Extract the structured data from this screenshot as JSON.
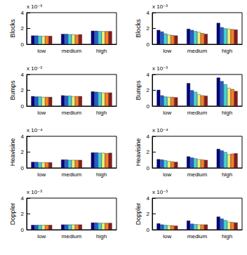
{
  "chart_data": [
    {
      "type": "bar",
      "y_label": "Blocks",
      "annotation": "x 10⁻³",
      "categories": [
        "low",
        "medium",
        "high"
      ],
      "ylim": [
        0,
        4
      ],
      "yticks": [
        0,
        2,
        4
      ],
      "grid": false,
      "series": [
        {
          "color": "#000080",
          "values": [
            1.1,
            1.3,
            1.7
          ]
        },
        {
          "color": "#1f5fd6",
          "values": [
            1.1,
            1.3,
            1.7
          ]
        },
        {
          "color": "#3fd7e0",
          "values": [
            1.05,
            1.25,
            1.65
          ]
        },
        {
          "color": "#eef07a",
          "values": [
            1.05,
            1.25,
            1.65
          ]
        },
        {
          "color": "#ff7f1f",
          "values": [
            1.05,
            1.2,
            1.65
          ]
        },
        {
          "color": "#8b1a1a",
          "values": [
            1.05,
            1.25,
            1.65
          ]
        }
      ]
    },
    {
      "type": "bar",
      "y_label": "Blocks",
      "annotation": "x 10⁻³",
      "categories": [
        "low",
        "medium",
        "high"
      ],
      "ylim": [
        0,
        4
      ],
      "yticks": [
        0,
        2,
        4
      ],
      "grid": false,
      "series": [
        {
          "color": "#000080",
          "values": [
            1.8,
            1.95,
            2.7
          ]
        },
        {
          "color": "#1f5fd6",
          "values": [
            1.6,
            1.8,
            2.15
          ]
        },
        {
          "color": "#3fd7e0",
          "values": [
            1.35,
            1.65,
            2.0
          ]
        },
        {
          "color": "#eef07a",
          "values": [
            1.2,
            1.55,
            1.95
          ]
        },
        {
          "color": "#ff7f1f",
          "values": [
            1.15,
            1.4,
            1.9
          ]
        },
        {
          "color": "#8b1a1a",
          "values": [
            1.1,
            1.3,
            1.85
          ]
        }
      ]
    },
    {
      "type": "bar",
      "y_label": "Bumps",
      "annotation": "x 10⁻³",
      "categories": [
        "low",
        "medium",
        "high"
      ],
      "ylim": [
        0,
        4
      ],
      "yticks": [
        0,
        2,
        4
      ],
      "grid": false,
      "series": [
        {
          "color": "#000080",
          "values": [
            1.25,
            1.35,
            1.85
          ]
        },
        {
          "color": "#1f5fd6",
          "values": [
            1.2,
            1.3,
            1.8
          ]
        },
        {
          "color": "#3fd7e0",
          "values": [
            1.2,
            1.3,
            1.75
          ]
        },
        {
          "color": "#eef07a",
          "values": [
            1.15,
            1.25,
            1.7
          ]
        },
        {
          "color": "#ff7f1f",
          "values": [
            1.15,
            1.25,
            1.7
          ]
        },
        {
          "color": "#8b1a1a",
          "values": [
            1.15,
            1.25,
            1.7
          ]
        }
      ]
    },
    {
      "type": "bar",
      "y_label": "Bumps",
      "annotation": "x 10⁻³",
      "categories": [
        "low",
        "medium",
        "high"
      ],
      "ylim": [
        0,
        4
      ],
      "yticks": [
        0,
        2,
        4
      ],
      "grid": false,
      "series": [
        {
          "color": "#000080",
          "values": [
            2.05,
            2.9,
            3.6
          ]
        },
        {
          "color": "#1f5fd6",
          "values": [
            1.35,
            2.0,
            3.15
          ]
        },
        {
          "color": "#3fd7e0",
          "values": [
            1.2,
            1.8,
            2.75
          ]
        },
        {
          "color": "#eef07a",
          "values": [
            1.15,
            1.5,
            2.3
          ]
        },
        {
          "color": "#ff7f1f",
          "values": [
            1.15,
            1.35,
            2.15
          ]
        },
        {
          "color": "#8b1a1a",
          "values": [
            1.1,
            1.3,
            1.9
          ]
        }
      ]
    },
    {
      "type": "bar",
      "y_label": "Heavisine",
      "annotation": "x 10⁻⁴",
      "categories": [
        "low",
        "medium",
        "high"
      ],
      "ylim": [
        0,
        4
      ],
      "yticks": [
        0,
        2,
        4
      ],
      "grid": false,
      "series": [
        {
          "color": "#000080",
          "values": [
            0.75,
            1.05,
            1.95
          ]
        },
        {
          "color": "#1f5fd6",
          "values": [
            0.75,
            1.05,
            1.95
          ]
        },
        {
          "color": "#3fd7e0",
          "values": [
            0.7,
            1.0,
            1.9
          ]
        },
        {
          "color": "#eef07a",
          "values": [
            0.7,
            1.0,
            1.9
          ]
        },
        {
          "color": "#ff7f1f",
          "values": [
            0.7,
            1.0,
            1.85
          ]
        },
        {
          "color": "#8b1a1a",
          "values": [
            0.7,
            1.0,
            1.9
          ]
        }
      ]
    },
    {
      "type": "bar",
      "y_label": "Heavisine",
      "annotation": "x 10⁻⁴",
      "categories": [
        "low",
        "medium",
        "high"
      ],
      "ylim": [
        0,
        4
      ],
      "yticks": [
        0,
        2,
        4
      ],
      "grid": false,
      "series": [
        {
          "color": "#000080",
          "values": [
            1.1,
            1.45,
            2.4
          ]
        },
        {
          "color": "#1f5fd6",
          "values": [
            1.05,
            1.3,
            2.2
          ]
        },
        {
          "color": "#3fd7e0",
          "values": [
            0.95,
            1.2,
            2.0
          ]
        },
        {
          "color": "#eef07a",
          "values": [
            0.85,
            1.1,
            1.7
          ]
        },
        {
          "color": "#ff7f1f",
          "values": [
            0.8,
            1.05,
            1.8
          ]
        },
        {
          "color": "#8b1a1a",
          "values": [
            0.75,
            1.0,
            1.85
          ]
        }
      ]
    },
    {
      "type": "bar",
      "y_label": "Doppler",
      "annotation": "x 10⁻³",
      "categories": [
        "low",
        "medium",
        "high"
      ],
      "ylim": [
        0,
        4
      ],
      "yticks": [
        0,
        2,
        4
      ],
      "grid": false,
      "series": [
        {
          "color": "#000080",
          "values": [
            0.6,
            0.65,
            0.9
          ]
        },
        {
          "color": "#1f5fd6",
          "values": [
            0.6,
            0.65,
            0.9
          ]
        },
        {
          "color": "#3fd7e0",
          "values": [
            0.6,
            0.65,
            0.85
          ]
        },
        {
          "color": "#eef07a",
          "values": [
            0.6,
            0.65,
            0.85
          ]
        },
        {
          "color": "#ff7f1f",
          "values": [
            0.6,
            0.65,
            0.85
          ]
        },
        {
          "color": "#8b1a1a",
          "values": [
            0.6,
            0.65,
            0.85
          ]
        }
      ]
    },
    {
      "type": "bar",
      "y_label": "Doppler",
      "annotation": "x 10⁻³",
      "categories": [
        "low",
        "medium",
        "high"
      ],
      "ylim": [
        0,
        4
      ],
      "yticks": [
        0,
        2,
        4
      ],
      "grid": false,
      "series": [
        {
          "color": "#000080",
          "values": [
            0.8,
            1.15,
            1.65
          ]
        },
        {
          "color": "#1f5fd6",
          "values": [
            0.65,
            0.75,
            1.4
          ]
        },
        {
          "color": "#3fd7e0",
          "values": [
            0.6,
            0.7,
            1.2
          ]
        },
        {
          "color": "#eef07a",
          "values": [
            0.55,
            0.65,
            1.0
          ]
        },
        {
          "color": "#ff7f1f",
          "values": [
            0.55,
            0.65,
            0.95
          ]
        },
        {
          "color": "#8b1a1a",
          "values": [
            0.5,
            0.65,
            0.9
          ]
        }
      ]
    }
  ]
}
